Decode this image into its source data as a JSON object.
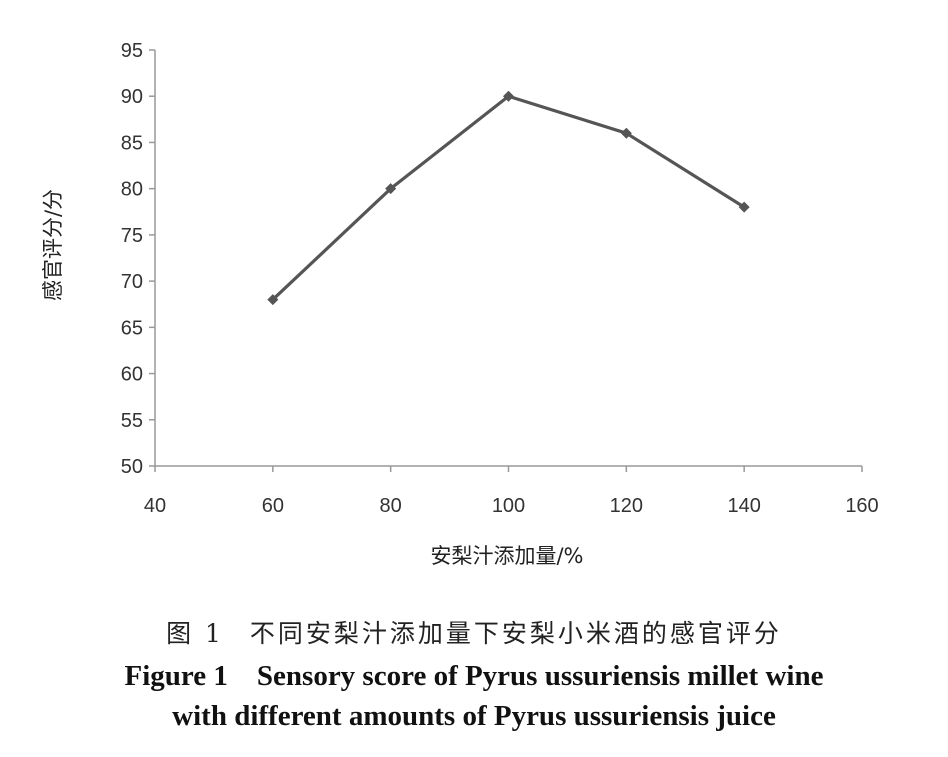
{
  "chart_data": {
    "type": "line",
    "x": [
      60,
      80,
      100,
      120,
      140
    ],
    "series": [
      {
        "values": [
          68,
          80,
          90,
          86,
          78
        ]
      }
    ],
    "xlabel": "安梨汁添加量/%",
    "ylabel": "感官评分/分",
    "xlim": [
      40,
      160
    ],
    "ylim": [
      50,
      95
    ],
    "xticks": [
      "40",
      "60",
      "80",
      "100",
      "120",
      "140",
      "160"
    ],
    "yticks": [
      "50",
      "55",
      "60",
      "65",
      "70",
      "75",
      "80",
      "85",
      "90",
      "95"
    ],
    "grid": false,
    "colors": {
      "line": "#555555",
      "axis": "#999999"
    }
  },
  "caption": {
    "cn_prefix": "图 1",
    "cn_text": "不同安梨汁添加量下安梨小米酒的感官评分",
    "en_line1": "Figure 1    Sensory score of Pyrus ussuriensis millet wine",
    "en_line2": "with different amounts of Pyrus ussuriensis juice"
  }
}
